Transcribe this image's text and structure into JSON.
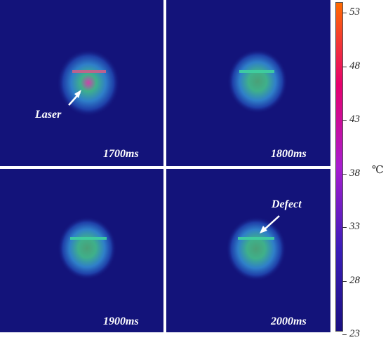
{
  "panels": [
    {
      "id": "p1",
      "time": "1700ms"
    },
    {
      "id": "p2",
      "time": "1800ms"
    },
    {
      "id": "p3",
      "time": "1900ms"
    },
    {
      "id": "p4",
      "time": "2000ms"
    }
  ],
  "annotations": {
    "laser": "Laser",
    "defect": "Defect"
  },
  "colorbar": {
    "ticks": [
      "53",
      "48",
      "43",
      "38",
      "33",
      "28",
      "23"
    ],
    "unit": "℃",
    "colors": [
      "#ff6a00",
      "#e6006e",
      "#a81dd0",
      "#3a1db8",
      "#1a1080"
    ]
  }
}
